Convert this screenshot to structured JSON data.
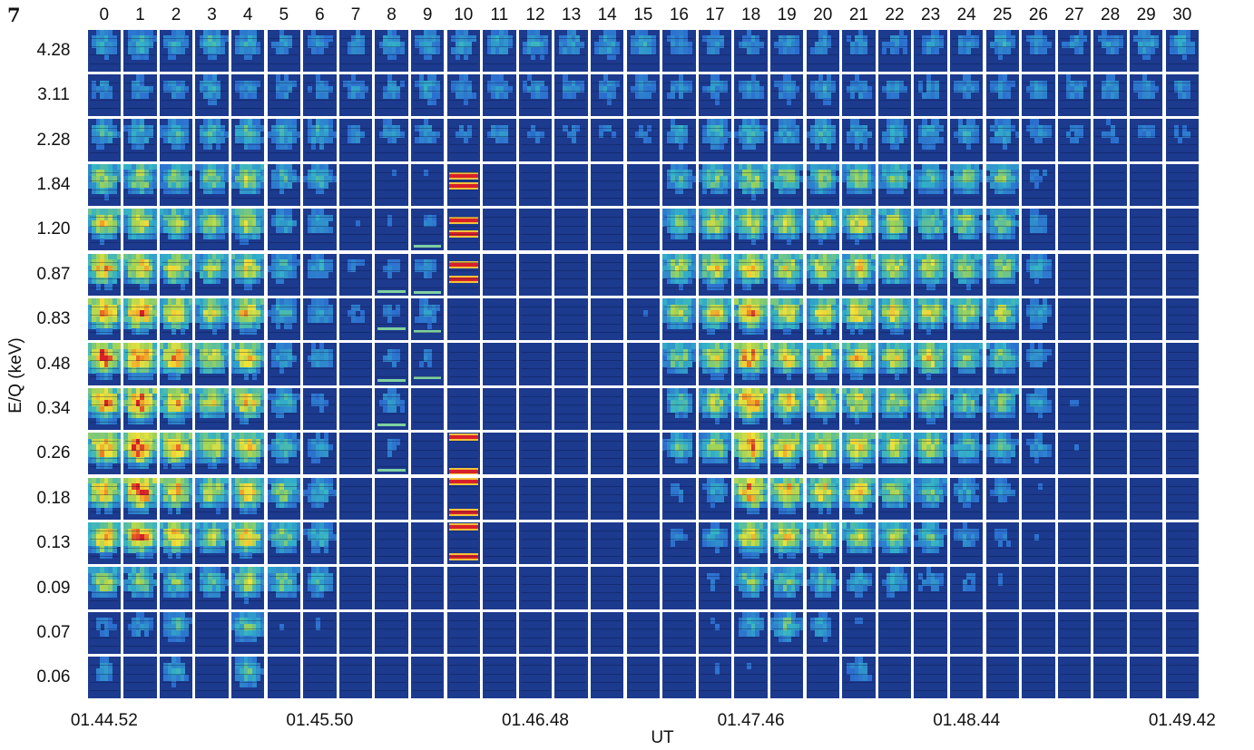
{
  "figure_label": "7",
  "chart_data": {
    "type": "heatmap",
    "title": "",
    "ylabel": "E/Q (keV)",
    "xlabel": "UT",
    "columns": [
      "0",
      "1",
      "2",
      "3",
      "4",
      "5",
      "6",
      "7",
      "8",
      "9",
      "10",
      "11",
      "12",
      "13",
      "14",
      "15",
      "16",
      "17",
      "18",
      "19",
      "20",
      "21",
      "22",
      "23",
      "24",
      "25",
      "26",
      "27",
      "28",
      "29",
      "30"
    ],
    "rows": [
      "4.28",
      "3.11",
      "2.28",
      "1.84",
      "1.20",
      "0.87",
      "0.83",
      "0.48",
      "0.34",
      "0.26",
      "0.18",
      "0.13",
      "0.09",
      "0.07",
      "0.06"
    ],
    "time_ticks": [
      "01.44.52",
      "01.45.50",
      "01.46.48",
      "01.47.46",
      "01.48.44",
      "01.49.42"
    ],
    "intensity_scale": [
      0,
      1
    ],
    "intensity": [
      [
        0.3,
        0.35,
        0.3,
        0.35,
        0.3,
        0.25,
        0.25,
        0.25,
        0.3,
        0.3,
        0.3,
        0.3,
        0.3,
        0.3,
        0.3,
        0.3,
        0.25,
        0.25,
        0.25,
        0.25,
        0.25,
        0.25,
        0.25,
        0.25,
        0.25,
        0.3,
        0.25,
        0.25,
        0.25,
        0.3,
        0.3
      ],
      [
        0.25,
        0.25,
        0.25,
        0.3,
        0.25,
        0.25,
        0.25,
        0.25,
        0.25,
        0.3,
        0.25,
        0.25,
        0.25,
        0.25,
        0.25,
        0.25,
        0.25,
        0.25,
        0.25,
        0.25,
        0.3,
        0.25,
        0.25,
        0.25,
        0.25,
        0.25,
        0.25,
        0.25,
        0.25,
        0.25,
        0.25
      ],
      [
        0.35,
        0.35,
        0.35,
        0.35,
        0.4,
        0.35,
        0.35,
        0.25,
        0.25,
        0.25,
        0.2,
        0.25,
        0.2,
        0.2,
        0.2,
        0.2,
        0.3,
        0.35,
        0.35,
        0.3,
        0.35,
        0.3,
        0.3,
        0.3,
        0.3,
        0.3,
        0.25,
        0.2,
        0.2,
        0.2,
        0.2
      ],
      [
        0.55,
        0.55,
        0.45,
        0.45,
        0.55,
        0.35,
        0.35,
        0.15,
        0.15,
        0.15,
        0.0,
        0.05,
        0.05,
        0.05,
        0.05,
        0.1,
        0.35,
        0.45,
        0.55,
        0.5,
        0.45,
        0.5,
        0.45,
        0.4,
        0.45,
        0.45,
        0.2,
        0.15,
        0.1,
        0.1,
        0.05
      ],
      [
        0.65,
        0.65,
        0.55,
        0.5,
        0.6,
        0.3,
        0.3,
        0.15,
        0.15,
        0.2,
        0.0,
        0.05,
        0.05,
        0.05,
        0.05,
        0.1,
        0.45,
        0.55,
        0.6,
        0.55,
        0.55,
        0.6,
        0.55,
        0.5,
        0.5,
        0.45,
        0.25,
        0.15,
        0.1,
        0.1,
        0.05
      ],
      [
        0.75,
        0.75,
        0.65,
        0.55,
        0.65,
        0.35,
        0.3,
        0.2,
        0.2,
        0.25,
        0.0,
        0.05,
        0.05,
        0.05,
        0.05,
        0.1,
        0.55,
        0.65,
        0.7,
        0.65,
        0.65,
        0.65,
        0.6,
        0.6,
        0.55,
        0.5,
        0.3,
        0.15,
        0.1,
        0.1,
        0.05
      ],
      [
        0.85,
        0.9,
        0.75,
        0.6,
        0.75,
        0.35,
        0.3,
        0.2,
        0.2,
        0.25,
        0.05,
        0.05,
        0.05,
        0.05,
        0.05,
        0.15,
        0.55,
        0.65,
        0.8,
        0.7,
        0.65,
        0.7,
        0.65,
        0.6,
        0.55,
        0.55,
        0.3,
        0.15,
        0.1,
        0.1,
        0.05
      ],
      [
        0.9,
        0.95,
        0.8,
        0.65,
        0.7,
        0.3,
        0.3,
        0.15,
        0.2,
        0.2,
        0.05,
        0.05,
        0.05,
        0.05,
        0.05,
        0.1,
        0.5,
        0.6,
        0.85,
        0.7,
        0.65,
        0.7,
        0.6,
        0.65,
        0.5,
        0.45,
        0.25,
        0.15,
        0.1,
        0.1,
        0.05
      ],
      [
        0.85,
        0.9,
        0.75,
        0.6,
        0.7,
        0.35,
        0.2,
        0.1,
        0.25,
        0.1,
        0.05,
        0.05,
        0.05,
        0.05,
        0.05,
        0.1,
        0.4,
        0.55,
        0.9,
        0.7,
        0.65,
        0.65,
        0.55,
        0.55,
        0.45,
        0.45,
        0.3,
        0.15,
        0.1,
        0.1,
        0.05
      ],
      [
        0.85,
        0.95,
        0.8,
        0.65,
        0.7,
        0.4,
        0.3,
        0.1,
        0.2,
        0.1,
        0.0,
        0.05,
        0.05,
        0.05,
        0.05,
        0.1,
        0.4,
        0.5,
        0.9,
        0.75,
        0.7,
        0.7,
        0.6,
        0.55,
        0.4,
        0.4,
        0.25,
        0.15,
        0.1,
        0.1,
        0.05
      ],
      [
        0.8,
        0.95,
        0.75,
        0.6,
        0.75,
        0.5,
        0.35,
        0.1,
        0.05,
        0.05,
        0.0,
        0.05,
        0.05,
        0.05,
        0.05,
        0.05,
        0.2,
        0.3,
        0.85,
        0.75,
        0.7,
        0.65,
        0.55,
        0.45,
        0.3,
        0.25,
        0.15,
        0.1,
        0.05,
        0.05,
        0.05
      ],
      [
        0.8,
        0.9,
        0.7,
        0.55,
        0.75,
        0.5,
        0.35,
        0.1,
        0.05,
        0.05,
        0.0,
        0.05,
        0.05,
        0.05,
        0.05,
        0.05,
        0.2,
        0.3,
        0.7,
        0.7,
        0.6,
        0.55,
        0.5,
        0.4,
        0.25,
        0.2,
        0.15,
        0.1,
        0.05,
        0.05,
        0.05
      ],
      [
        0.55,
        0.5,
        0.45,
        0.4,
        0.55,
        0.45,
        0.35,
        0.1,
        0.05,
        0.05,
        0.05,
        0.05,
        0.05,
        0.05,
        0.05,
        0.05,
        0.1,
        0.2,
        0.45,
        0.45,
        0.4,
        0.3,
        0.3,
        0.25,
        0.2,
        0.15,
        0.1,
        0.05,
        0.05,
        0.05,
        0.05
      ],
      [
        0.2,
        0.25,
        0.35,
        0.1,
        0.45,
        0.15,
        0.15,
        0.05,
        0.05,
        0.05,
        0.05,
        0.05,
        0.05,
        0.05,
        0.05,
        0.05,
        0.05,
        0.15,
        0.3,
        0.4,
        0.3,
        0.15,
        0.1,
        0.1,
        0.1,
        0.05,
        0.05,
        0.05,
        0.05,
        0.05,
        0.05
      ],
      [
        0.25,
        0.15,
        0.3,
        0.05,
        0.4,
        0.1,
        0.1,
        0.05,
        0.05,
        0.05,
        0.05,
        0.05,
        0.05,
        0.05,
        0.05,
        0.05,
        0.05,
        0.15,
        0.15,
        0.1,
        0.1,
        0.25,
        0.1,
        0.1,
        0.05,
        0.05,
        0.05,
        0.05,
        0.05,
        0.05,
        0.05
      ]
    ],
    "column_10_bands": {
      "1.84": [
        0.28,
        0.52
      ],
      "1.20": [
        0.28,
        0.6
      ],
      "0.87": [
        0.28,
        0.62
      ],
      "0.26": [
        0.1,
        0.92
      ],
      "0.18": [
        0.1,
        0.82
      ],
      "0.13": [
        0.1,
        0.82
      ]
    },
    "low_energy_streaks": {
      "8": {
        "0.87": 0.88,
        "0.83": 0.7,
        "0.48": 0.85,
        "0.34": 0.85,
        "0.26": 0.85
      },
      "9": {
        "1.20": 0.85,
        "0.87": 0.9,
        "0.83": 0.75,
        "0.48": 0.8
      }
    },
    "colors": {
      "background": "#1c3a8e",
      "scale": [
        "#1c3a8e",
        "#2c6fd0",
        "#33b2c8",
        "#9ad25a",
        "#f2e23a",
        "#f08a24",
        "#d8202a"
      ]
    }
  }
}
